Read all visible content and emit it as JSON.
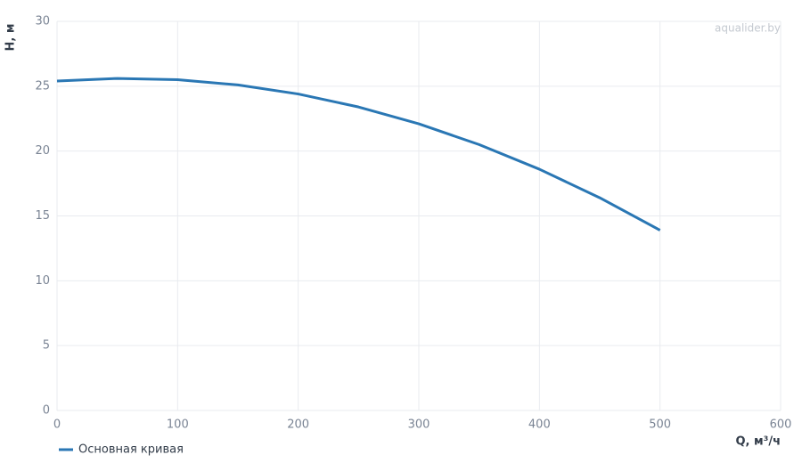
{
  "chart_data": {
    "type": "line",
    "xlabel": "Q, м³/ч",
    "ylabel": "H, м",
    "watermark": "aqualider.by",
    "x": [
      0,
      50,
      100,
      150,
      200,
      250,
      300,
      350,
      400,
      450,
      500
    ],
    "series": [
      {
        "name": "Основная кривая",
        "color": "#2a77b4",
        "values": [
          25.4,
          25.6,
          25.5,
          25.1,
          24.4,
          23.4,
          22.1,
          20.5,
          18.6,
          16.4,
          13.9
        ]
      }
    ],
    "xlim": [
      0,
      600
    ],
    "ylim": [
      0,
      30
    ],
    "xticks": [
      0,
      100,
      200,
      300,
      400,
      500,
      600
    ],
    "yticks": [
      0,
      5,
      10,
      15,
      20,
      25,
      30
    ],
    "grid": true
  }
}
